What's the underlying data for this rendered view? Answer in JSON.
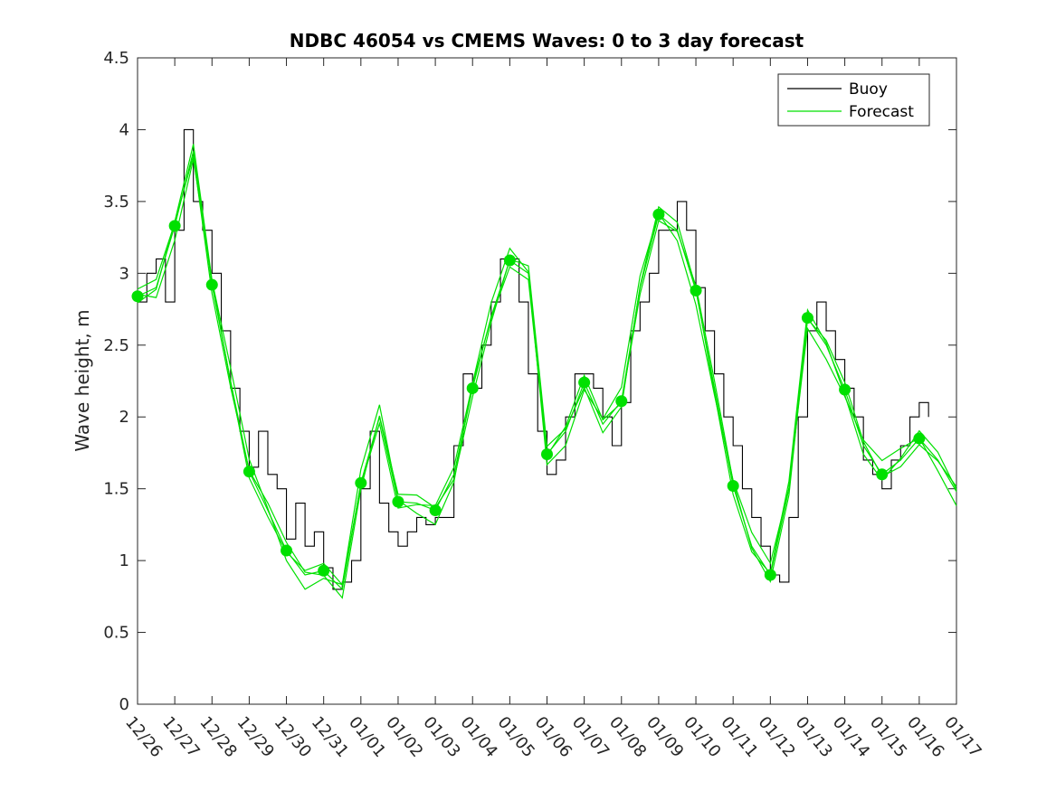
{
  "chart_data": {
    "type": "line",
    "title": "NDBC 46054 vs CMEMS Waves: 0 to 3 day forecast",
    "xlabel": "",
    "ylabel": "Wave height, m",
    "xlim": [
      0,
      22
    ],
    "ylim": [
      0,
      4.5
    ],
    "yticks": [
      0,
      0.5,
      1,
      1.5,
      2,
      2.5,
      3,
      3.5,
      4,
      4.5
    ],
    "ytick_labels": [
      "0",
      "0.5",
      "1",
      "1.5",
      "2",
      "2.5",
      "3",
      "3.5",
      "4",
      "4.5"
    ],
    "xtick_labels": [
      "12/26",
      "12/27",
      "12/28",
      "12/29",
      "12/30",
      "12/31",
      "01/01",
      "01/02",
      "01/03",
      "01/04",
      "01/05",
      "01/06",
      "01/07",
      "01/08",
      "01/09",
      "01/10",
      "01/11",
      "01/12",
      "01/13",
      "01/14",
      "01/15",
      "01/16",
      "01/17"
    ],
    "legend": {
      "position": "top-right",
      "entries": [
        "Buoy",
        "Forecast"
      ]
    },
    "colors": {
      "buoy": "#000000",
      "forecast": "#00e000",
      "axis": "#262626"
    },
    "series": [
      {
        "name": "Buoy",
        "x": [
          0,
          0.25,
          0.5,
          0.75,
          1,
          1.25,
          1.5,
          1.75,
          2,
          2.25,
          2.5,
          2.75,
          3,
          3.25,
          3.5,
          3.75,
          4,
          4.25,
          4.5,
          4.75,
          5,
          5.25,
          5.5,
          5.75,
          6,
          6.25,
          6.5,
          6.75,
          7,
          7.25,
          7.5,
          7.75,
          8,
          8.25,
          8.5,
          8.75,
          9,
          9.25,
          9.5,
          9.75,
          10,
          10.25,
          10.5,
          10.75,
          11,
          11.25,
          11.5,
          11.75,
          12,
          12.25,
          12.5,
          12.75,
          13,
          13.25,
          13.5,
          13.75,
          14,
          14.25,
          14.5,
          14.75,
          15,
          15.25,
          15.5,
          15.75,
          16,
          16.25,
          16.5,
          16.75,
          17,
          17.25,
          17.5,
          17.75,
          18,
          18.25,
          18.5,
          18.75,
          19,
          19.25,
          19.5,
          19.75,
          20,
          20.25,
          20.5,
          20.75,
          21,
          21.25
        ],
        "values": [
          2.8,
          3.0,
          3.1,
          2.8,
          3.3,
          4.0,
          3.5,
          3.3,
          3.0,
          2.6,
          2.2,
          1.9,
          1.65,
          1.9,
          1.6,
          1.5,
          1.15,
          1.4,
          1.1,
          1.2,
          0.95,
          0.8,
          0.85,
          1.0,
          1.5,
          1.9,
          1.4,
          1.2,
          1.1,
          1.2,
          1.3,
          1.25,
          1.3,
          1.3,
          1.8,
          2.3,
          2.2,
          2.5,
          2.8,
          3.1,
          3.1,
          2.8,
          2.3,
          1.9,
          1.6,
          1.7,
          2.0,
          2.3,
          2.3,
          2.2,
          2.0,
          1.8,
          2.1,
          2.6,
          2.8,
          3.0,
          3.3,
          3.3,
          3.5,
          3.3,
          2.9,
          2.6,
          2.3,
          2.0,
          1.8,
          1.5,
          1.3,
          1.1,
          0.9,
          0.85,
          1.3,
          2.0,
          2.6,
          2.8,
          2.6,
          2.4,
          2.2,
          2.0,
          1.7,
          1.6,
          1.5,
          1.7,
          1.8,
          2.0,
          2.1,
          2.0
        ]
      },
      {
        "name": "Forecast",
        "x": [
          0,
          0.5,
          1,
          1.5,
          2,
          2.5,
          3,
          3.5,
          4,
          4.5,
          5,
          5.5,
          6,
          6.5,
          7,
          7.5,
          8,
          8.5,
          9,
          9.5,
          10,
          10.5,
          11,
          11.5,
          12,
          12.5,
          13,
          13.5,
          14,
          14.5,
          15,
          15.5,
          16,
          16.5,
          17,
          17.5,
          18,
          18.5,
          19,
          19.5,
          20,
          20.5,
          21,
          21.5,
          22
        ],
        "values": [
          2.84,
          2.9,
          3.33,
          3.85,
          2.92,
          2.25,
          1.62,
          1.35,
          1.07,
          0.9,
          0.93,
          0.8,
          1.54,
          2.0,
          1.41,
          1.4,
          1.35,
          1.6,
          2.2,
          2.7,
          3.09,
          3.0,
          1.74,
          1.9,
          2.24,
          1.95,
          2.11,
          2.9,
          3.41,
          3.3,
          2.88,
          2.2,
          1.52,
          1.1,
          0.9,
          1.5,
          2.69,
          2.5,
          2.19,
          1.8,
          1.6,
          1.7,
          1.85,
          1.7,
          1.48
        ]
      }
    ],
    "markers": {
      "name": "Forecast",
      "x": [
        0,
        1,
        2,
        3,
        4,
        5,
        6,
        7,
        8,
        9,
        10,
        11,
        12,
        13,
        14,
        15,
        16,
        17,
        18,
        19,
        20,
        21
      ],
      "values": [
        2.84,
        3.33,
        2.92,
        1.62,
        1.07,
        0.93,
        1.54,
        1.41,
        1.35,
        2.2,
        3.09,
        1.74,
        2.24,
        2.11,
        3.41,
        2.88,
        1.52,
        0.9,
        2.69,
        2.19,
        1.6,
        1.85
      ]
    }
  }
}
